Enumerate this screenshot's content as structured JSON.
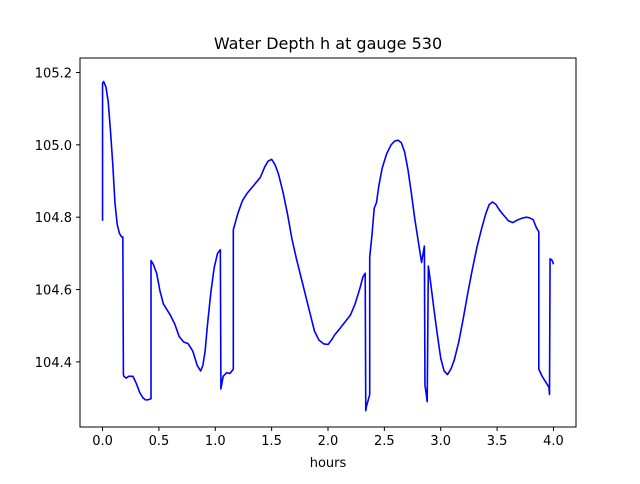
{
  "chart_data": {
    "type": "line",
    "title": "Water Depth h at gauge 530",
    "xlabel": "hours",
    "ylabel": "",
    "xlim": [
      -0.2,
      4.2
    ],
    "ylim": [
      104.22,
      105.24
    ],
    "x_ticks": [
      0.0,
      0.5,
      1.0,
      1.5,
      2.0,
      2.5,
      3.0,
      3.5,
      4.0
    ],
    "x_tick_labels": [
      "0.0",
      "0.5",
      "1.0",
      "1.5",
      "2.0",
      "2.5",
      "3.0",
      "3.5",
      "4.0"
    ],
    "y_ticks": [
      104.4,
      104.6,
      104.8,
      105.0,
      105.2
    ],
    "y_tick_labels": [
      "104.4",
      "104.6",
      "104.8",
      "105.0",
      "105.2"
    ],
    "grid": false,
    "legend": "none",
    "series": [
      {
        "color": "#0000ff",
        "x": [
          0.0,
          0.0,
          0.01,
          0.03,
          0.05,
          0.07,
          0.09,
          0.11,
          0.13,
          0.15,
          0.17,
          0.18,
          0.185,
          0.19,
          0.21,
          0.23,
          0.27,
          0.3,
          0.33,
          0.36,
          0.38,
          0.4,
          0.43,
          0.43,
          0.45,
          0.48,
          0.51,
          0.54,
          0.57,
          0.6,
          0.64,
          0.68,
          0.72,
          0.76,
          0.8,
          0.84,
          0.87,
          0.89,
          0.91,
          0.93,
          0.96,
          0.99,
          1.02,
          1.045,
          1.05,
          1.07,
          1.1,
          1.13,
          1.16,
          1.16,
          1.2,
          1.24,
          1.28,
          1.32,
          1.36,
          1.4,
          1.44,
          1.47,
          1.5,
          1.53,
          1.56,
          1.6,
          1.64,
          1.68,
          1.72,
          1.76,
          1.8,
          1.84,
          1.88,
          1.92,
          1.96,
          2.0,
          2.03,
          2.06,
          2.1,
          2.15,
          2.2,
          2.24,
          2.28,
          2.31,
          2.33,
          2.335,
          2.34,
          2.37,
          2.37,
          2.39,
          2.41,
          2.43,
          2.45,
          2.48,
          2.52,
          2.56,
          2.59,
          2.62,
          2.65,
          2.68,
          2.71,
          2.74,
          2.77,
          2.8,
          2.83,
          2.855,
          2.86,
          2.87,
          2.88,
          2.89,
          2.91,
          2.94,
          2.97,
          3.0,
          3.03,
          3.06,
          3.09,
          3.12,
          3.16,
          3.2,
          3.24,
          3.28,
          3.32,
          3.36,
          3.4,
          3.43,
          3.46,
          3.49,
          3.52,
          3.56,
          3.6,
          3.64,
          3.68,
          3.72,
          3.76,
          3.79,
          3.82,
          3.85,
          3.87,
          3.87,
          3.9,
          3.93,
          3.96,
          3.965,
          3.97,
          3.99,
          4.0
        ],
        "values": [
          104.79,
          105.17,
          105.175,
          105.16,
          105.12,
          105.04,
          104.95,
          104.84,
          104.78,
          104.755,
          104.745,
          104.745,
          104.365,
          104.36,
          104.355,
          104.36,
          104.36,
          104.34,
          104.315,
          104.3,
          104.295,
          104.295,
          104.298,
          104.68,
          104.67,
          104.645,
          104.595,
          104.56,
          104.545,
          104.53,
          104.505,
          104.47,
          104.455,
          104.45,
          104.43,
          104.39,
          104.375,
          104.39,
          104.43,
          104.5,
          104.59,
          104.66,
          104.7,
          104.71,
          104.325,
          104.36,
          104.37,
          104.368,
          104.38,
          104.765,
          104.81,
          104.845,
          104.865,
          104.88,
          104.895,
          104.91,
          104.94,
          104.955,
          104.96,
          104.945,
          104.92,
          104.87,
          104.81,
          104.74,
          104.685,
          104.635,
          104.585,
          104.535,
          104.485,
          104.46,
          104.45,
          104.448,
          104.46,
          104.475,
          104.49,
          104.51,
          104.53,
          104.56,
          104.6,
          104.635,
          104.645,
          104.265,
          104.275,
          104.31,
          104.69,
          104.75,
          104.825,
          104.84,
          104.885,
          104.935,
          104.975,
          105.0,
          105.01,
          105.013,
          105.006,
          104.98,
          104.93,
          104.865,
          104.795,
          104.735,
          104.675,
          104.72,
          104.335,
          104.315,
          104.29,
          104.665,
          104.62,
          104.545,
          104.475,
          104.41,
          104.375,
          104.365,
          104.38,
          104.405,
          104.455,
          104.52,
          104.59,
          104.655,
          104.715,
          104.765,
          104.81,
          104.835,
          104.842,
          104.835,
          104.82,
          104.805,
          104.79,
          104.785,
          104.792,
          104.797,
          104.8,
          104.798,
          104.793,
          104.77,
          104.76,
          104.38,
          104.36,
          104.345,
          104.33,
          104.31,
          104.685,
          104.68,
          104.67
        ]
      }
    ]
  }
}
